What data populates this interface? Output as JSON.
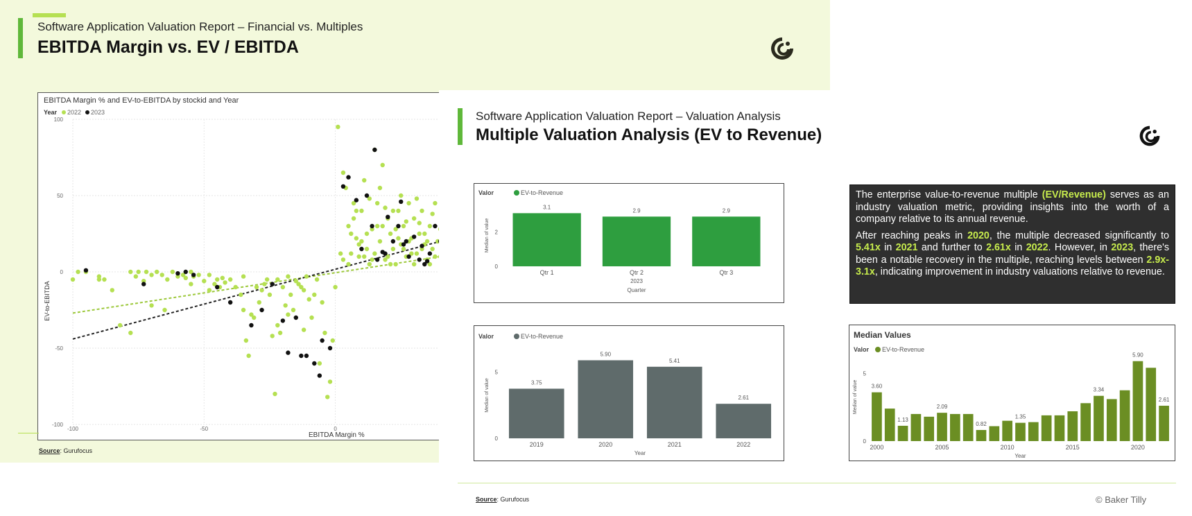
{
  "colors": {
    "lime": "#b5e052",
    "black": "#111111",
    "green": "#2e9e3f",
    "slate": "#5f6b6b",
    "olive": "#6b8e23",
    "accent": "#5fb83a"
  },
  "slide1": {
    "subtitle": "Software Application Valuation Report – Financial vs. Multiples",
    "title": "EBITDA Margin vs. EV / EBITDA",
    "logo_icon": "baker-tilly-logo-icon",
    "source_label": "Source",
    "source_text": ": Gurufocus"
  },
  "slide2": {
    "subtitle": "Software Application Valuation Report – Valuation Analysis",
    "title": "Multiple Valuation Analysis (EV to Revenue)",
    "logo_icon": "baker-tilly-logo-icon",
    "text": {
      "p1": [
        {
          "t": "The enterprise value-to-revenue multiple ",
          "h": false
        },
        {
          "t": "(EV/Revenue)",
          "h": true
        },
        {
          "t": " serves as an industry valuation metric, providing insights into the worth of a company relative to its annual revenue.",
          "h": false
        }
      ],
      "p2": [
        {
          "t": "After reaching peaks in ",
          "h": false
        },
        {
          "t": "2020",
          "h": true
        },
        {
          "t": ", the multiple decreased significantly to ",
          "h": false
        },
        {
          "t": "5.41x",
          "h": true
        },
        {
          "t": " in ",
          "h": false
        },
        {
          "t": "2021",
          "h": true
        },
        {
          "t": " and further to ",
          "h": false
        },
        {
          "t": "2.61x",
          "h": true
        },
        {
          "t": " in ",
          "h": false
        },
        {
          "t": "2022",
          "h": true
        },
        {
          "t": ". However, in ",
          "h": false
        },
        {
          "t": "2023",
          "h": true
        },
        {
          "t": ", there's been a notable recovery in the multiple, reaching levels between ",
          "h": false
        },
        {
          "t": "2.9x-3.1x",
          "h": true
        },
        {
          "t": ", indicating improvement in industry valuations relative to revenue.",
          "h": false
        }
      ]
    },
    "source_label": "Source",
    "source_text": ": Gurufocus",
    "copyright": "© Baker Tilly"
  },
  "chart_data": [
    {
      "id": "scatter",
      "type": "scatter",
      "title": "EBITDA Margin % and EV-to-EBITDA by stockid and Year",
      "legend_title": "Year",
      "legend_placement": "top-left",
      "xlabel": "EBITDA Margin %",
      "ylabel": "EV-to-EBITDA",
      "xlim": [
        -100,
        40
      ],
      "ylim": [
        -100,
        100
      ],
      "xticks": [
        -100,
        -50,
        0
      ],
      "yticks": [
        100,
        50,
        0,
        -50,
        -100
      ],
      "grid": true,
      "series": [
        {
          "name": "2022",
          "color": "#b5e052",
          "trend": [
            [
              -100,
              -27
            ],
            [
              40,
              10
            ]
          ],
          "points": [
            [
              -100,
              -5
            ],
            [
              -98,
              0
            ],
            [
              -95,
              0
            ],
            [
              -90,
              -5
            ],
            [
              -88,
              -5
            ],
            [
              -78,
              0
            ],
            [
              -76,
              -3
            ],
            [
              -75,
              0
            ],
            [
              -73,
              -6
            ],
            [
              -72,
              0
            ],
            [
              -70,
              -2
            ],
            [
              -68,
              0
            ],
            [
              -66,
              -2
            ],
            [
              -64,
              -5
            ],
            [
              -62,
              0
            ],
            [
              -60,
              -3
            ],
            [
              -58,
              -2
            ],
            [
              -57,
              -4
            ],
            [
              -55,
              0
            ],
            [
              -54,
              -3
            ],
            [
              -52,
              -2
            ],
            [
              -50,
              -6
            ],
            [
              -48,
              -2
            ],
            [
              -46,
              -8
            ],
            [
              -45,
              -5
            ],
            [
              -43,
              -4
            ],
            [
              -42,
              -7
            ],
            [
              -40,
              -5
            ],
            [
              -38,
              -10
            ],
            [
              -36,
              -15
            ],
            [
              -35,
              -25
            ],
            [
              -34,
              -45
            ],
            [
              -33,
              -55
            ],
            [
              -32,
              -28
            ],
            [
              -31,
              -30
            ],
            [
              -30,
              -10
            ],
            [
              -29,
              -20
            ],
            [
              -28,
              -12
            ],
            [
              -27,
              -8
            ],
            [
              -26,
              -5
            ],
            [
              -25,
              -15
            ],
            [
              -24,
              -42
            ],
            [
              -23,
              -80
            ],
            [
              -22,
              -5
            ],
            [
              -21,
              -40
            ],
            [
              -20,
              -10
            ],
            [
              -19,
              -22
            ],
            [
              -18,
              -3
            ],
            [
              -17,
              -15
            ],
            [
              -16,
              -25
            ],
            [
              -15,
              -6
            ],
            [
              -14,
              -8
            ],
            [
              -13,
              -10
            ],
            [
              -12,
              -12
            ],
            [
              -11,
              -3
            ],
            [
              -10,
              -18
            ],
            [
              -9,
              -30
            ],
            [
              -8,
              -15
            ],
            [
              -7,
              -5
            ],
            [
              -6,
              -60
            ],
            [
              -5,
              -20
            ],
            [
              -4,
              -40
            ],
            [
              -3,
              -82
            ],
            [
              -2,
              -72
            ],
            [
              -1,
              -45
            ],
            [
              0,
              -10
            ],
            [
              -82,
              -35
            ],
            [
              -78,
              -40
            ],
            [
              -85,
              -12
            ],
            [
              -65,
              -25
            ],
            [
              -70,
              -22
            ],
            [
              -90,
              -3
            ],
            [
              -55,
              -8
            ],
            [
              -35,
              -3
            ],
            [
              -48,
              -12
            ],
            [
              -44,
              -10
            ],
            [
              -22,
              -35
            ],
            [
              -18,
              -28
            ],
            [
              -12,
              -38
            ],
            [
              1,
              95
            ],
            [
              3,
              65
            ],
            [
              4,
              55
            ],
            [
              5,
              30
            ],
            [
              6,
              12
            ],
            [
              7,
              35
            ],
            [
              8,
              22
            ],
            [
              9,
              10
            ],
            [
              10,
              40
            ],
            [
              11,
              60
            ],
            [
              12,
              15
            ],
            [
              13,
              5
            ],
            [
              14,
              28
            ],
            [
              15,
              80
            ],
            [
              16,
              45
            ],
            [
              17,
              20
            ],
            [
              18,
              70
            ],
            [
              19,
              8
            ],
            [
              20,
              35
            ],
            [
              21,
              25
            ],
            [
              22,
              15
            ],
            [
              23,
              5
            ],
            [
              24,
              40
            ],
            [
              25,
              18
            ],
            [
              26,
              30
            ],
            [
              27,
              10
            ],
            [
              28,
              45
            ],
            [
              29,
              22
            ],
            [
              30,
              35
            ],
            [
              31,
              12
            ],
            [
              32,
              25
            ],
            [
              33,
              40
            ],
            [
              34,
              18
            ],
            [
              35,
              8
            ],
            [
              36,
              30
            ],
            [
              37,
              15
            ],
            [
              38,
              45
            ],
            [
              39,
              20
            ],
            [
              40,
              10
            ],
            [
              2,
              12
            ],
            [
              6,
              25
            ],
            [
              10,
              20
            ],
            [
              14,
              8
            ],
            [
              18,
              30
            ],
            [
              22,
              40
            ],
            [
              26,
              15
            ],
            [
              30,
              5
            ],
            [
              34,
              25
            ],
            [
              38,
              10
            ],
            [
              5,
              5
            ],
            [
              12,
              25
            ],
            [
              20,
              10
            ],
            [
              28,
              20
            ],
            [
              36,
              5
            ],
            [
              7,
              45
            ],
            [
              17,
              55
            ],
            [
              25,
              50
            ],
            [
              33,
              15
            ],
            [
              3,
              8
            ],
            [
              8,
              40
            ],
            [
              16,
              30
            ],
            [
              24,
              22
            ],
            [
              32,
              32
            ],
            [
              40,
              28
            ],
            [
              11,
              10
            ],
            [
              19,
              42
            ],
            [
              27,
              33
            ],
            [
              35,
              20
            ],
            [
              9,
              18
            ],
            [
              21,
              5
            ],
            [
              29,
              12
            ],
            [
              37,
              38
            ],
            [
              13,
              48
            ],
            [
              23,
              28
            ],
            [
              31,
              48
            ],
            [
              15,
              12
            ]
          ]
        },
        {
          "name": "2023",
          "color": "#111111",
          "trend": [
            [
              -100,
              -44
            ],
            [
              40,
              20
            ]
          ],
          "points": [
            [
              -95,
              1
            ],
            [
              -73,
              -8
            ],
            [
              -57,
              0
            ],
            [
              -54,
              -2
            ],
            [
              -45,
              -10
            ],
            [
              -32,
              -35
            ],
            [
              -28,
              -25
            ],
            [
              -24,
              -8
            ],
            [
              -20,
              -32
            ],
            [
              -18,
              -53
            ],
            [
              -15,
              -30
            ],
            [
              -13,
              -55
            ],
            [
              -11,
              -55
            ],
            [
              -8,
              -60
            ],
            [
              -6,
              -68
            ],
            [
              -5,
              -45
            ],
            [
              -2,
              -50
            ],
            [
              -60,
              -1
            ],
            [
              -40,
              -20
            ],
            [
              3,
              56
            ],
            [
              5,
              62
            ],
            [
              8,
              47
            ],
            [
              12,
              50
            ],
            [
              14,
              30
            ],
            [
              16,
              8
            ],
            [
              18,
              13
            ],
            [
              20,
              36
            ],
            [
              22,
              20
            ],
            [
              24,
              30
            ],
            [
              26,
              18
            ],
            [
              28,
              10
            ],
            [
              30,
              23
            ],
            [
              32,
              8
            ],
            [
              34,
              5
            ],
            [
              36,
              12
            ],
            [
              38,
              30
            ],
            [
              40,
              20
            ],
            [
              15,
              80
            ],
            [
              10,
              15
            ],
            [
              19,
              12
            ],
            [
              25,
              46
            ],
            [
              27,
              20
            ],
            [
              33,
              17
            ],
            [
              35,
              7
            ]
          ]
        }
      ]
    },
    {
      "id": "quarter",
      "type": "bar",
      "legend_title": "Valor",
      "legend_entry": "EV-to-Revenue",
      "ylabel": "Median of value",
      "xlabel": "Quarter",
      "group_label": "2023",
      "categories": [
        "Qtr 1",
        "Qtr 2",
        "Qtr 3"
      ],
      "values": [
        3.1,
        2.9,
        2.9
      ],
      "data_labels": [
        "3.1",
        "2.9",
        "2.9"
      ],
      "ylim": [
        0,
        3.6
      ],
      "yticks": [
        0,
        2
      ],
      "color": "#2e9e3f"
    },
    {
      "id": "year",
      "type": "bar",
      "legend_title": "Valor",
      "legend_entry": "EV-to-Revenue",
      "ylabel": "Median of value",
      "xlabel": "Year",
      "categories": [
        "2019",
        "2020",
        "2021",
        "2022"
      ],
      "values": [
        3.75,
        5.9,
        5.41,
        2.61
      ],
      "data_labels": [
        "3.75",
        "5.90",
        "5.41",
        "2.61"
      ],
      "ylim": [
        0,
        6.5
      ],
      "yticks": [
        0,
        5
      ],
      "color": "#5f6b6b"
    },
    {
      "id": "median",
      "type": "bar",
      "title": "Median Values",
      "legend_title": "Valor",
      "legend_entry": "EV-to-Revenue",
      "ylabel": "Median of value",
      "xlabel": "Year",
      "categories": [
        "2000",
        "2001",
        "2002",
        "2003",
        "2004",
        "2005",
        "2006",
        "2007",
        "2008",
        "2009",
        "2010",
        "2011",
        "2012",
        "2013",
        "2014",
        "2015",
        "2016",
        "2017",
        "2018",
        "2019",
        "2020",
        "2021",
        "2022"
      ],
      "values": [
        3.6,
        2.4,
        1.13,
        2.0,
        1.8,
        2.09,
        2.0,
        2.0,
        0.82,
        1.1,
        1.5,
        1.35,
        1.4,
        1.9,
        1.9,
        2.2,
        2.8,
        3.34,
        3.1,
        3.75,
        5.9,
        5.41,
        2.61
      ],
      "data_labels": [
        "3.60",
        "",
        "1.13",
        "",
        "",
        "2.09",
        "",
        "",
        "0.82",
        "",
        "",
        "1.35",
        "",
        "",
        "",
        "",
        "",
        "3.34",
        "",
        "",
        "5.90",
        "",
        "2.61"
      ],
      "xticks": [
        "2000",
        "2005",
        "2010",
        "2015",
        "2020"
      ],
      "ylim": [
        0,
        6.5
      ],
      "yticks": [
        0,
        5
      ],
      "color": "#6b8e23"
    }
  ]
}
